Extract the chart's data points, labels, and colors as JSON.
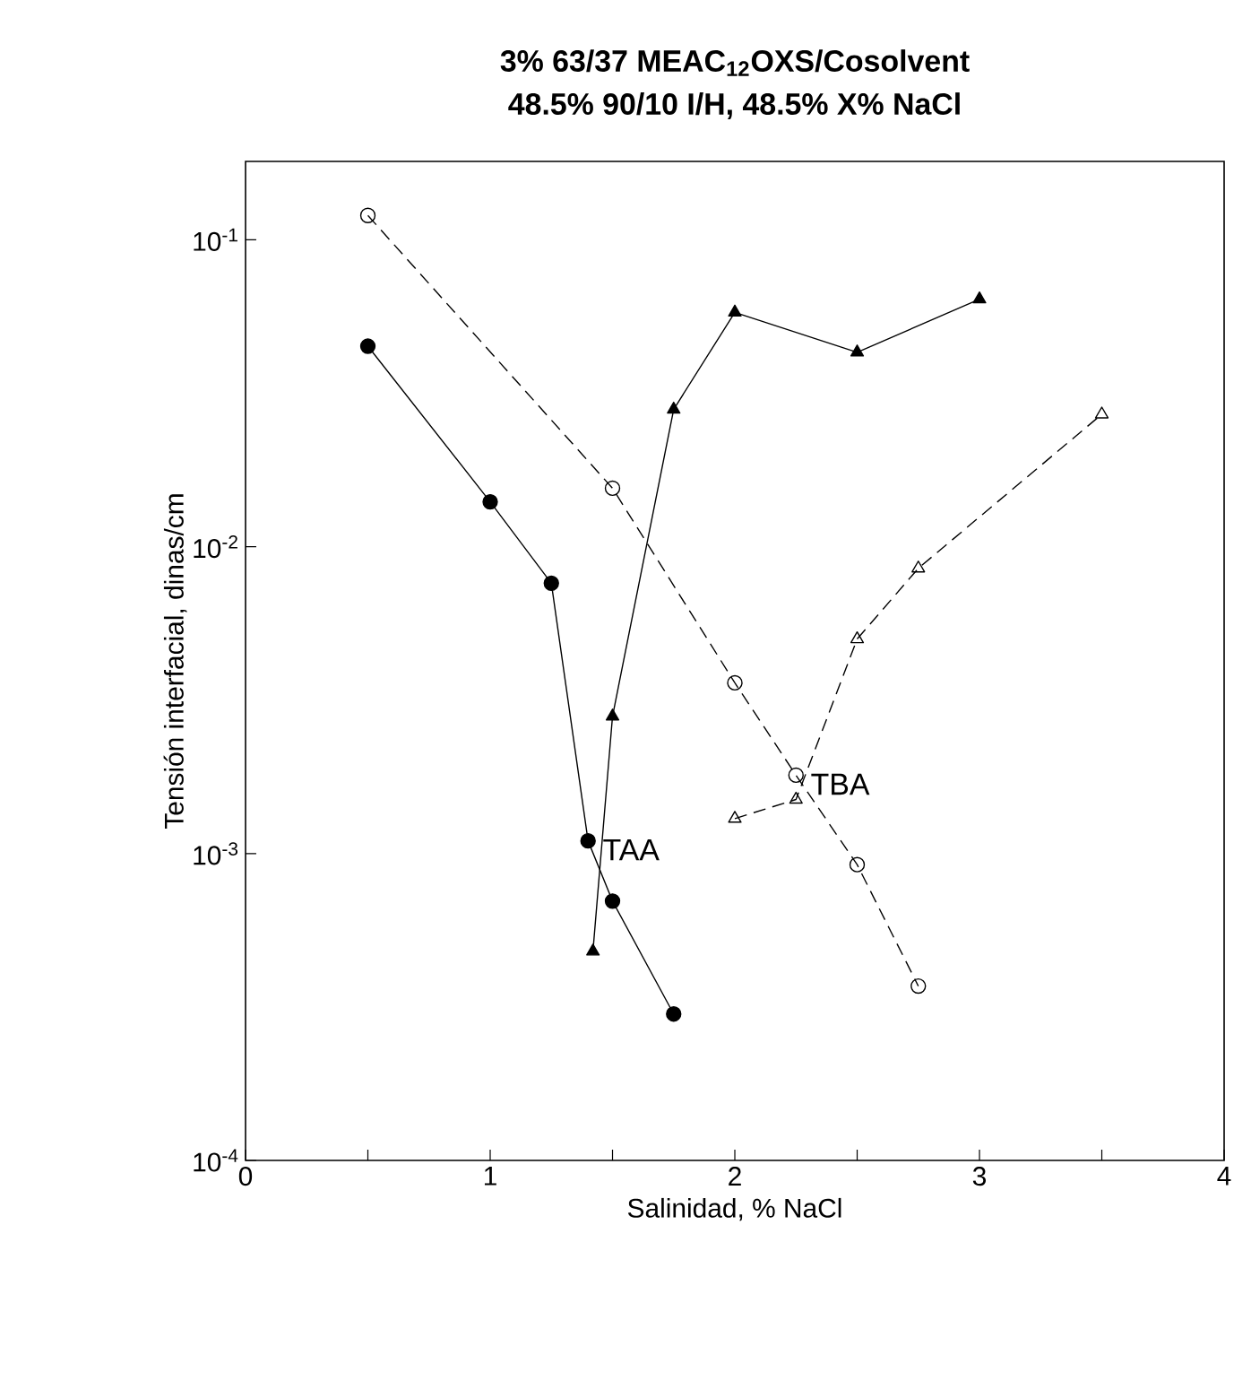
{
  "chart_data": {
    "type": "line",
    "title": "3% 63/37 MEAC$_{12}$OXS/Cosolvent",
    "subtitle": "48.5% 90/10 I/H, 48.5% X% NaCl",
    "xlabel": "Salinidad, % NaCl",
    "ylabel": "Tensión interfacial, dinas/cm",
    "log": "y",
    "xlim": [
      0,
      4
    ],
    "ylim": [
      0.0001,
      0.18
    ],
    "xticks": [
      0,
      {
        "value": 0.5,
        "label": null
      },
      1,
      {
        "value": 1.5,
        "label": null
      },
      2,
      {
        "value": 2.5,
        "label": null
      },
      3,
      {
        "value": 3.5,
        "label": null
      },
      4
    ],
    "yticks": [
      {
        "value": 0.0001,
        "label": "10$^{-4}$"
      },
      {
        "value": 0.001,
        "label": "10$^{-3}$"
      },
      {
        "value": 0.01,
        "label": "10$^{-2}$"
      },
      {
        "value": 0.1,
        "label": "10$^{-1}$"
      }
    ],
    "series": [
      {
        "color": "#000000",
        "marker": "circle",
        "line_style": "solid",
        "x": [
          0.5,
          1.0,
          1.25,
          1.4,
          1.5,
          1.75
        ],
        "values": [
          0.045,
          0.014,
          0.0076,
          0.0011,
          0.0007,
          0.0003
        ]
      },
      {
        "color": "#000000",
        "marker": "triangle",
        "line_style": "solid",
        "x": [
          1.42,
          1.5,
          1.75,
          2.0,
          2.5,
          3.0
        ],
        "values": [
          0.00048,
          0.0028,
          0.028,
          0.058,
          0.043,
          0.064
        ]
      },
      {
        "color": "#000000",
        "marker": "circle",
        "line_style": "dashed",
        "x": [
          0.5,
          1.5,
          2.0,
          2.25,
          2.5,
          2.75
        ],
        "values": [
          0.12,
          0.0155,
          0.0036,
          0.0018,
          0.00092,
          0.00037
        ]
      },
      {
        "color": "#000000",
        "marker": "triangle",
        "line_style": "dashed",
        "x": [
          2.0,
          2.25,
          2.5,
          2.75,
          3.5
        ],
        "values": [
          0.0013,
          0.0015,
          0.005,
          0.0085,
          0.027
        ]
      }
    ],
    "annotations": [
      {
        "text": "TAA",
        "x": 1.4,
        "y": 0.0011
      },
      {
        "text": "TBA",
        "x": 2.25,
        "y": 0.0018
      }
    ]
  }
}
